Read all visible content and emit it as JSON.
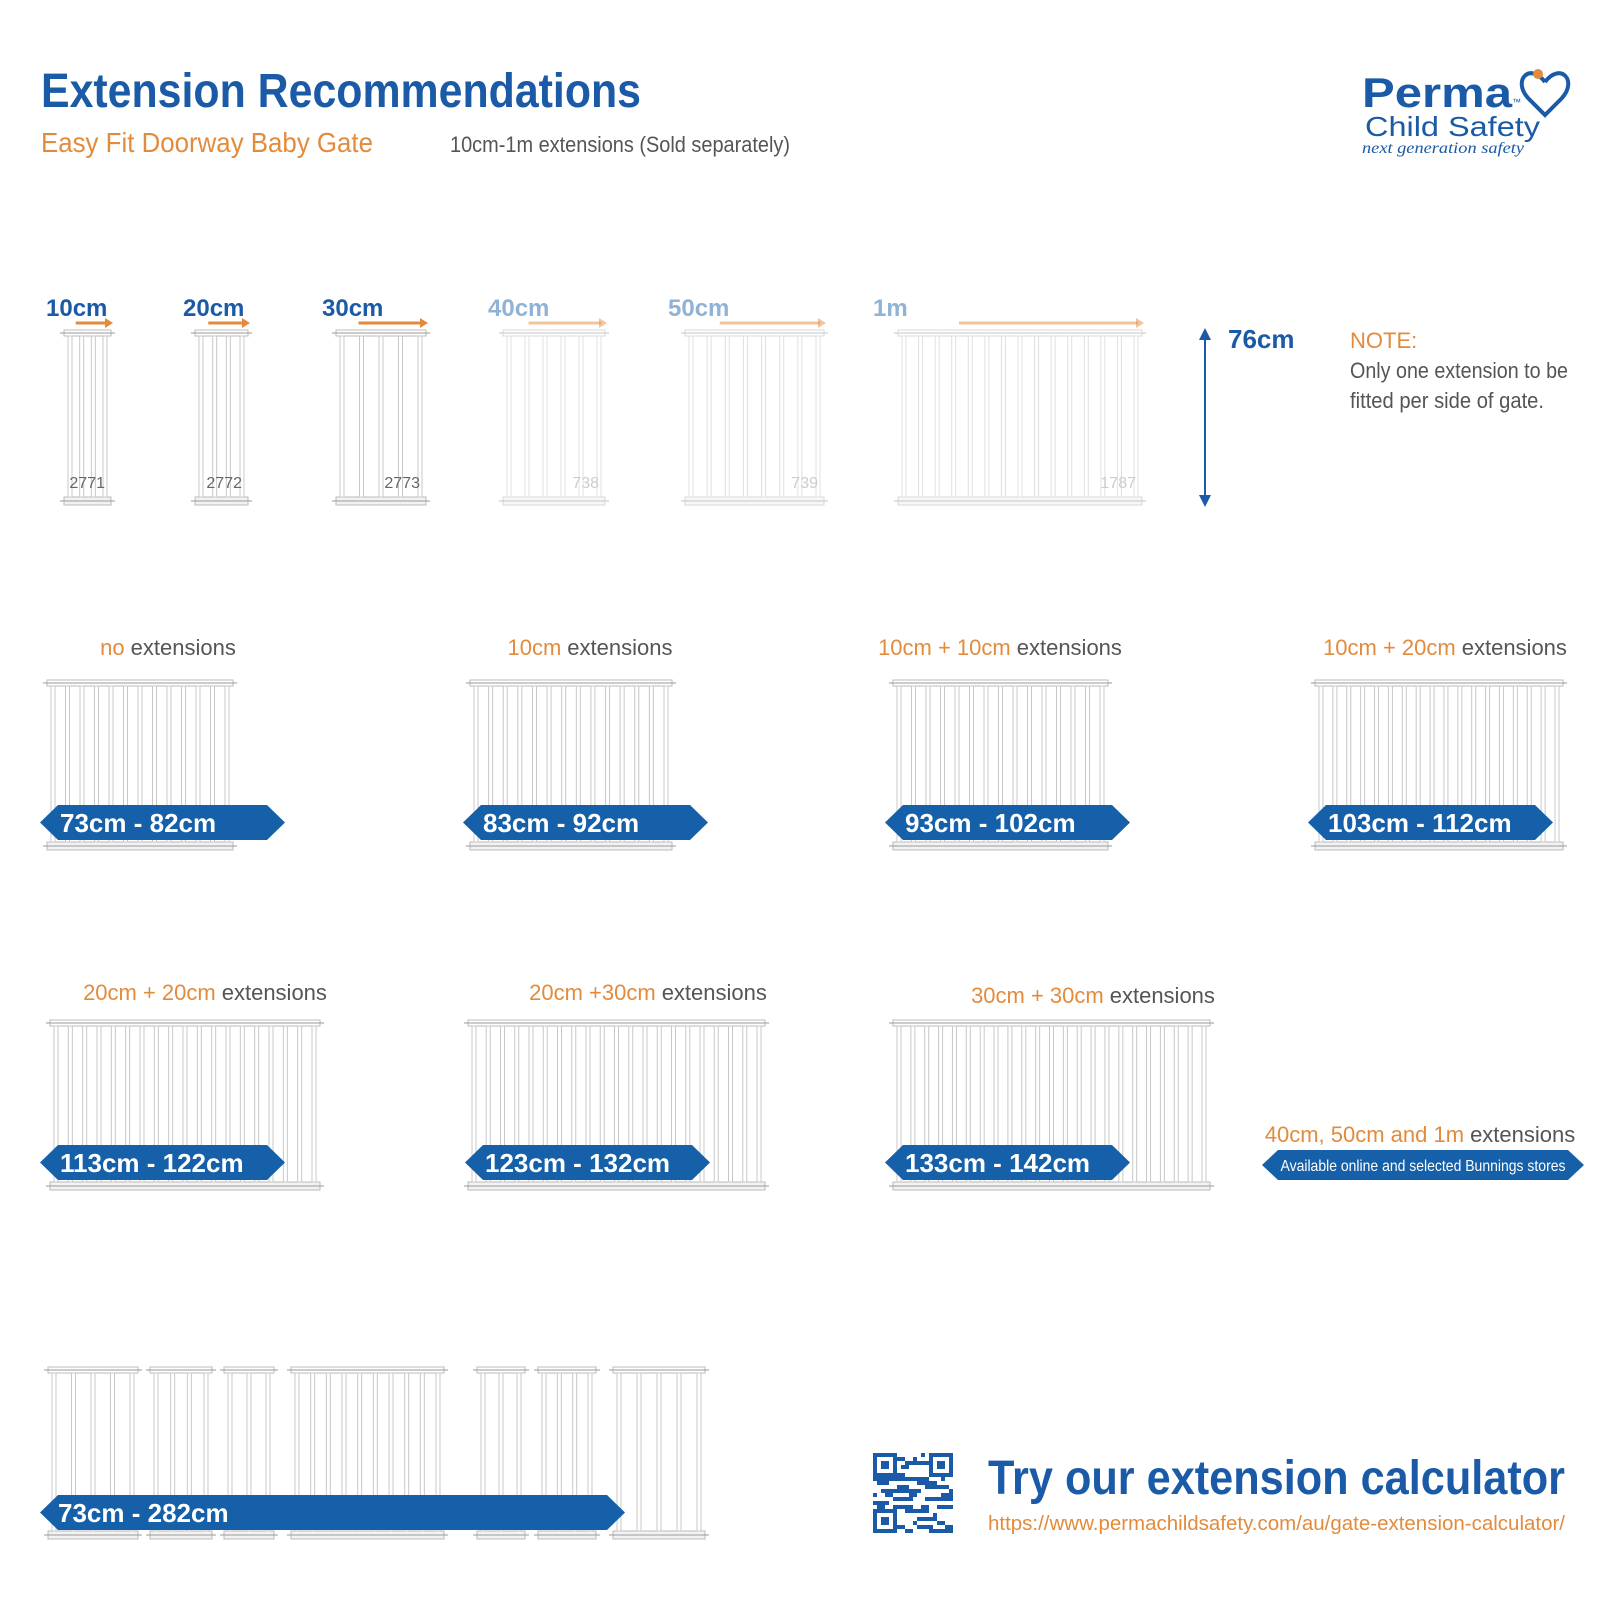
{
  "header": {
    "title": "Extension Recommendations",
    "subtitle": "Easy Fit Doorway Baby Gate",
    "note": "10cm-1m extensions (Sold separately)"
  },
  "logo": {
    "brand": "Perma",
    "tm": "™",
    "name": "Child Safety",
    "tagline": "next generation safety"
  },
  "extensions": [
    {
      "size": "10cm",
      "code": "2771"
    },
    {
      "size": "20cm",
      "code": "2772"
    },
    {
      "size": "30cm",
      "code": "2773"
    },
    {
      "size": "40cm",
      "code": "738"
    },
    {
      "size": "50cm",
      "code": "739"
    },
    {
      "size": "1m",
      "code": "1787"
    }
  ],
  "height": "76cm",
  "fit_note": {
    "heading": "NOTE:",
    "lines": [
      "Only one extension to be",
      "fitted per side of gate."
    ]
  },
  "configs": [
    {
      "extensions": "no",
      "suffix": "extensions",
      "range": "73cm - 82cm"
    },
    {
      "extensions": "10cm",
      "suffix": "extensions",
      "range": "83cm - 92cm"
    },
    {
      "extensions": "10cm + 10cm",
      "suffix": "extensions",
      "range": "93cm - 102cm"
    },
    {
      "extensions": "10cm + 20cm",
      "suffix": "extensions",
      "range": "103cm - 112cm"
    },
    {
      "extensions": "20cm + 20cm",
      "suffix": "extensions",
      "range": "113cm - 122cm"
    },
    {
      "extensions": "20cm +30cm",
      "suffix": "extensions",
      "range": "123cm - 132cm"
    },
    {
      "extensions": "30cm + 30cm",
      "suffix": "extensions",
      "range": "133cm - 142cm"
    }
  ],
  "availability": {
    "extensions": "40cm, 50cm and 1m",
    "suffix": "extensions",
    "text": "Available online and selected Bunnings stores"
  },
  "maximum": {
    "range": "73cm - 282cm"
  },
  "calculator": {
    "title": "Try our extension calculator",
    "url": "https://www.permachildsafety.com/au/gate-extension-calculator/"
  }
}
